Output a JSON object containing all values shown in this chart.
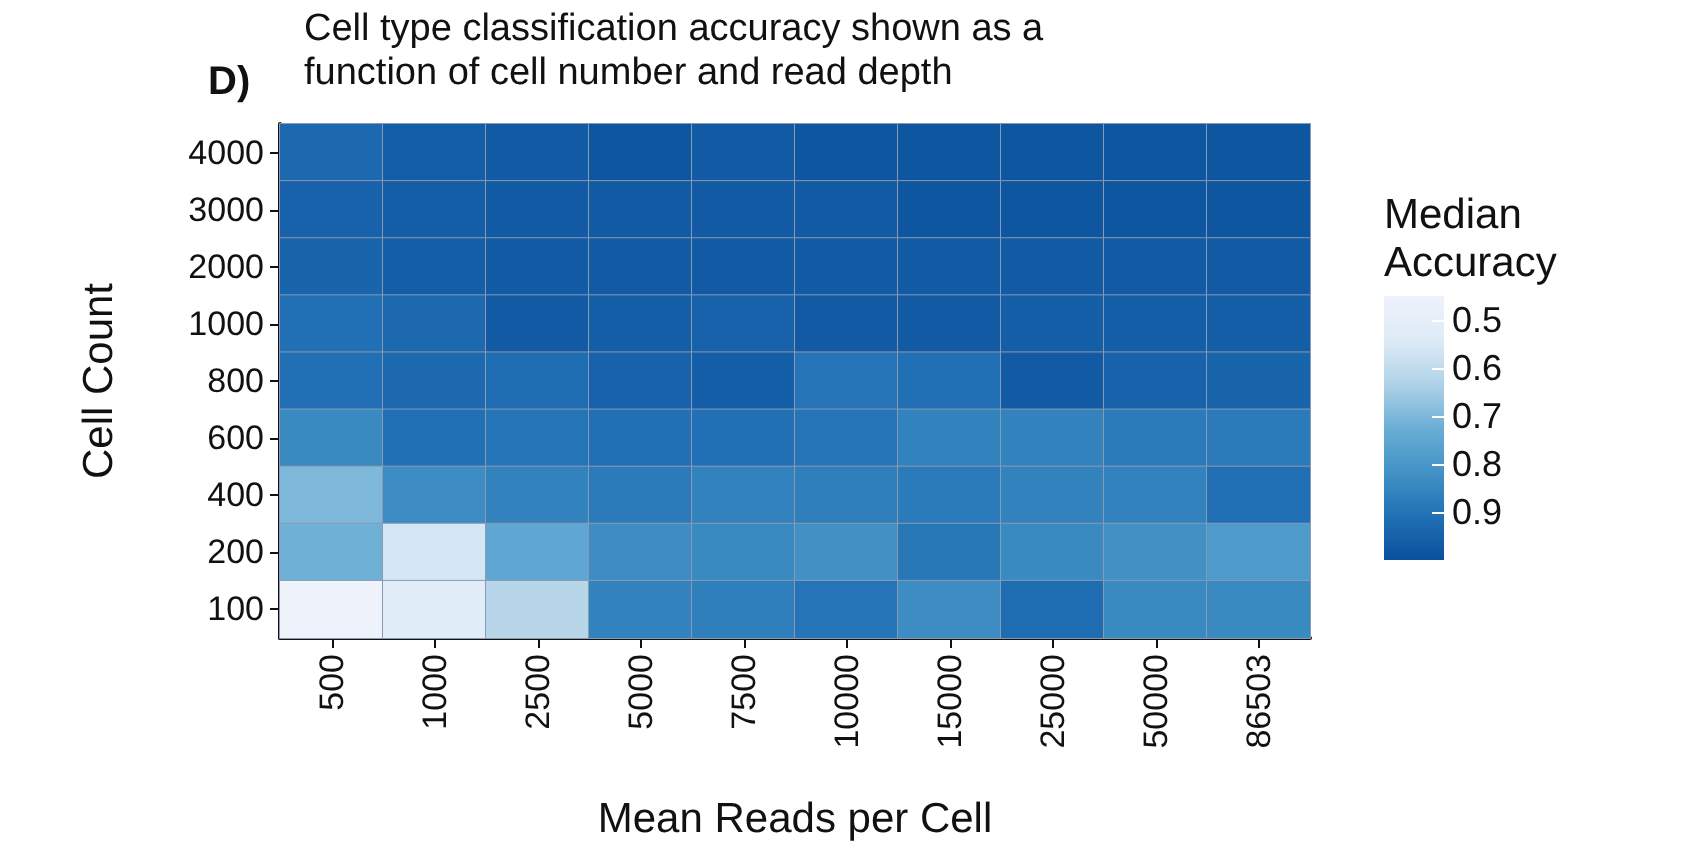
{
  "chart_data": {
    "type": "heatmap",
    "title": "Cell type classification accuracy shown as a function of cell number and read depth",
    "annotations": [
      "D)"
    ],
    "xlabel": "Mean Reads per Cell",
    "ylabel": "Cell Count",
    "legend_title": "Median Accuracy",
    "categories": [
      "500",
      "1000",
      "2500",
      "5000",
      "7500",
      "10000",
      "15000",
      "25000",
      "50000",
      "86503"
    ],
    "y_categories": [
      "4000",
      "3000",
      "2000",
      "1000",
      "800",
      "600",
      "400",
      "200",
      "100"
    ],
    "cells": [
      [
        0.93,
        0.96,
        0.97,
        0.98,
        0.97,
        0.98,
        0.98,
        0.98,
        0.98,
        0.98
      ],
      [
        0.95,
        0.96,
        0.97,
        0.97,
        0.97,
        0.97,
        0.98,
        0.98,
        0.98,
        0.98
      ],
      [
        0.94,
        0.96,
        0.97,
        0.97,
        0.97,
        0.97,
        0.97,
        0.97,
        0.97,
        0.97
      ],
      [
        0.91,
        0.93,
        0.97,
        0.96,
        0.95,
        0.97,
        0.97,
        0.96,
        0.96,
        0.96
      ],
      [
        0.91,
        0.93,
        0.92,
        0.95,
        0.96,
        0.9,
        0.91,
        0.97,
        0.95,
        0.94
      ],
      [
        0.84,
        0.91,
        0.9,
        0.91,
        0.91,
        0.9,
        0.86,
        0.86,
        0.88,
        0.88
      ],
      [
        0.7,
        0.83,
        0.86,
        0.88,
        0.86,
        0.87,
        0.88,
        0.86,
        0.86,
        0.91
      ],
      [
        0.72,
        0.56,
        0.75,
        0.83,
        0.84,
        0.82,
        0.89,
        0.84,
        0.82,
        0.79
      ],
      [
        0.45,
        0.53,
        0.62,
        0.86,
        0.87,
        0.9,
        0.83,
        0.92,
        0.84,
        0.84
      ]
    ],
    "clim": [
      0.45,
      1.0
    ],
    "cticks": [
      0.5,
      0.6,
      0.7,
      0.8,
      0.9
    ]
  }
}
